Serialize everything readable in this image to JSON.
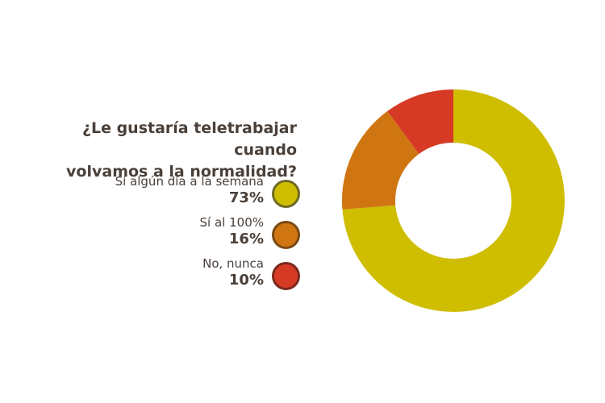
{
  "chart_data": {
    "type": "pie",
    "title": "¿Le gustaría teletrabajar cuando volvamos a la normalidad?",
    "title_lines": [
      "¿Le gustaría teletrabajar cuando",
      "volvamos a la normalidad?"
    ],
    "donut": true,
    "categories": [
      "Sí algún día a la semana",
      "Sí al 100%",
      "No, nunca"
    ],
    "values": [
      73,
      16,
      10
    ],
    "value_labels": [
      "73%",
      "16%",
      "10%"
    ],
    "colors": [
      "#cfbe00",
      "#cf7612",
      "#d63a24"
    ],
    "swatch_borders": [
      "#6f6a26",
      "#7a4a16",
      "#7a2a1e"
    ]
  }
}
